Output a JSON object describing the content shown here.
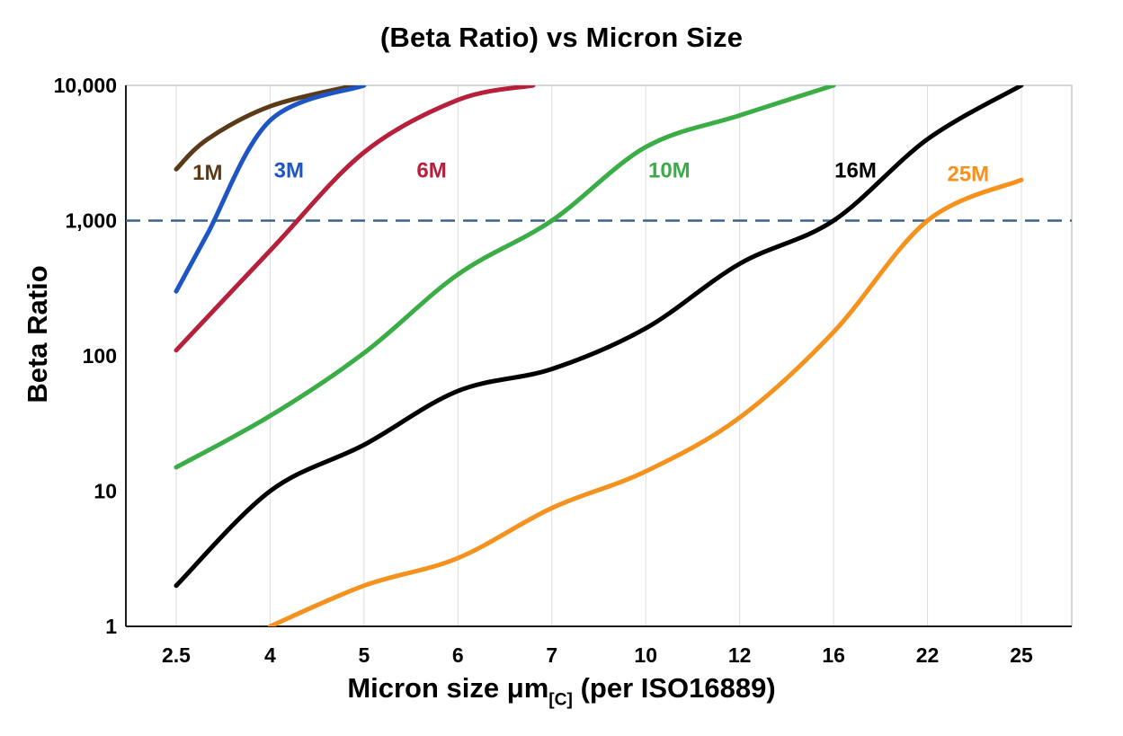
{
  "chart_data": {
    "type": "line",
    "title": "(Beta Ratio) vs Micron Size",
    "ylabel": "Beta Ratio",
    "xlabel": {
      "main": "Micron size μm",
      "sub": "[C]",
      "suffix": " (per ISO16889)"
    },
    "x_categories": [
      2.5,
      4,
      5,
      6,
      7,
      10,
      12,
      16,
      22,
      25
    ],
    "x_tick_labels": [
      "2.5",
      "4",
      "5",
      "6",
      "7",
      "10",
      "12",
      "16",
      "22",
      "25"
    ],
    "y_scale": "log",
    "ylim": [
      1,
      10000
    ],
    "y_ticks": [
      1,
      10,
      100,
      1000,
      10000
    ],
    "y_tick_labels": [
      "1",
      "10",
      "100",
      "1,000",
      "10,000"
    ],
    "grid": {
      "vertical": true,
      "horizontal": false,
      "color": "#dcdcdc"
    },
    "frame_color": "#c9c9c9",
    "axis_color": "#1a1a1a",
    "reference_line": {
      "y": 1000,
      "style": "dashed",
      "color": "#3d6288"
    },
    "series": [
      {
        "name": "1M",
        "color": "#5b3a18",
        "label": "1M",
        "label_at": {
          "micron": 3.0,
          "beta": 2300
        },
        "points": [
          [
            2.5,
            2400
          ],
          [
            3,
            4000
          ],
          [
            4,
            7000
          ],
          [
            4.9,
            10000
          ]
        ]
      },
      {
        "name": "3M",
        "color": "#1d55c4",
        "label": "3M",
        "label_at": {
          "micron": 4.2,
          "beta": 2400
        },
        "points": [
          [
            2.5,
            300
          ],
          [
            3,
            800
          ],
          [
            4,
            5500
          ],
          [
            5,
            10000
          ]
        ]
      },
      {
        "name": "6M",
        "color": "#b6203a",
        "label": "6M",
        "label_at": {
          "micron": 5.72,
          "beta": 2400
        },
        "points": [
          [
            2.5,
            110
          ],
          [
            4,
            600
          ],
          [
            5,
            3200
          ],
          [
            6,
            7800
          ],
          [
            6.8,
            10000
          ]
        ]
      },
      {
        "name": "10M",
        "color": "#3aad46",
        "label": "10M",
        "label_at": {
          "micron": 10.5,
          "beta": 2400
        },
        "points": [
          [
            2.5,
            15
          ],
          [
            4,
            36
          ],
          [
            5,
            105
          ],
          [
            6,
            400
          ],
          [
            7,
            1000
          ],
          [
            10,
            3500
          ],
          [
            12,
            6000
          ],
          [
            16,
            10000
          ]
        ]
      },
      {
        "name": "16M",
        "color": "#000000",
        "label": "16M",
        "label_at": {
          "micron": 17.4,
          "beta": 2400
        },
        "points": [
          [
            2.5,
            2
          ],
          [
            4,
            10
          ],
          [
            5,
            22
          ],
          [
            6,
            55
          ],
          [
            7,
            80
          ],
          [
            10,
            160
          ],
          [
            12,
            480
          ],
          [
            16,
            1000
          ],
          [
            22,
            4000
          ],
          [
            25,
            10000
          ]
        ]
      },
      {
        "name": "25M",
        "color": "#f5921e",
        "label": "25M",
        "label_at": {
          "micron": 23.3,
          "beta": 2250
        },
        "points": [
          [
            4,
            1
          ],
          [
            5,
            2
          ],
          [
            6,
            3.2
          ],
          [
            7,
            7.5
          ],
          [
            10,
            14
          ],
          [
            12,
            35
          ],
          [
            16,
            150
          ],
          [
            22,
            1000
          ],
          [
            25,
            2000
          ]
        ]
      }
    ]
  }
}
